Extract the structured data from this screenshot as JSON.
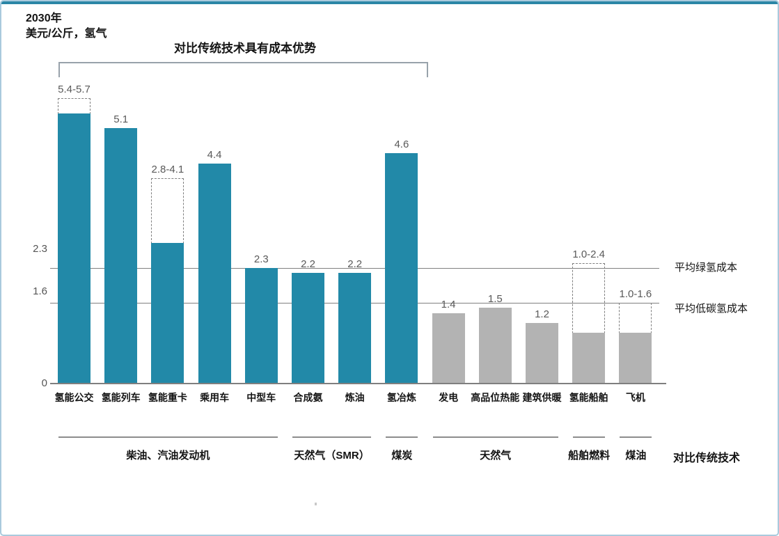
{
  "page": {
    "title": "2030年",
    "subtitle": "美元/公斤，氢气",
    "advantage_note": "对比传统技术具有成本优势",
    "comparison_label": "对比传统技术"
  },
  "colors": {
    "hydrogen_bar": "#2289a8",
    "conventional_bar": "#b3b3b3",
    "accent_strip": "#2b86a6",
    "page_border": "#a9cadd",
    "reference_line": "#7f7f7f"
  },
  "chart_data": {
    "type": "bar",
    "title": "2030年 美元/公斤，氢气",
    "ylabel": "美元/公斤，氢气",
    "ylim": [
      0,
      6
    ],
    "grid": false,
    "categories": [
      "氢能公交",
      "氢能列车",
      "氢能重卡",
      "乘用车",
      "中型车",
      "合成氨",
      "炼油",
      "氢冶炼",
      "发电",
      "高品位热能",
      "建筑供暖",
      "氢能船舶",
      "飞机"
    ],
    "bars": [
      {
        "category": "氢能公交",
        "value_low": 5.4,
        "value_high": 5.7,
        "label": "5.4-5.7",
        "style": "hydrogen"
      },
      {
        "category": "氢能列车",
        "value_low": 5.1,
        "value_high": null,
        "label": "5.1",
        "style": "hydrogen"
      },
      {
        "category": "氢能重卡",
        "value_low": 2.8,
        "value_high": 4.1,
        "label": "2.8-4.1",
        "style": "hydrogen"
      },
      {
        "category": "乘用车",
        "value_low": 4.4,
        "value_high": null,
        "label": "4.4",
        "style": "hydrogen"
      },
      {
        "category": "中型车",
        "value_low": 2.3,
        "value_high": null,
        "label": "2.3",
        "style": "hydrogen"
      },
      {
        "category": "合成氨",
        "value_low": 2.2,
        "value_high": null,
        "label": "2.2",
        "style": "hydrogen"
      },
      {
        "category": "炼油",
        "value_low": 2.2,
        "value_high": null,
        "label": "2.2",
        "style": "hydrogen"
      },
      {
        "category": "氢冶炼",
        "value_low": 4.6,
        "value_high": null,
        "label": "4.6",
        "style": "hydrogen"
      },
      {
        "category": "发电",
        "value_low": 1.4,
        "value_high": null,
        "label": "1.4",
        "style": "conventional"
      },
      {
        "category": "高品位热能",
        "value_low": 1.5,
        "value_high": null,
        "label": "1.5",
        "style": "conventional"
      },
      {
        "category": "建筑供暖",
        "value_low": 1.2,
        "value_high": null,
        "label": "1.2",
        "style": "conventional"
      },
      {
        "category": "氢能船舶",
        "value_low": 1.0,
        "value_high": 2.4,
        "label": "1.0-2.4",
        "style": "conventional"
      },
      {
        "category": "飞机",
        "value_low": 1.0,
        "value_high": 1.6,
        "label": "1.0-1.6",
        "style": "conventional"
      }
    ],
    "yticks": [
      {
        "label": "2.3",
        "value": 2.3
      },
      {
        "label": "1.6",
        "value": 1.6
      },
      {
        "label": "0",
        "value": 0
      }
    ],
    "reference_lines": [
      {
        "value": 2.3,
        "label": "平均绿氢成本"
      },
      {
        "value": 1.6,
        "label": "平均低碳氢成本"
      }
    ],
    "groups": [
      {
        "label": "柴油、汽油发动机",
        "start": 0,
        "end": 4
      },
      {
        "label": "天然气（SMR）",
        "start": 5,
        "end": 6
      },
      {
        "label": "煤炭",
        "start": 7,
        "end": 7
      },
      {
        "label": "天然气",
        "start": 8,
        "end": 10
      },
      {
        "label": "船舶燃料",
        "start": 11,
        "end": 11
      },
      {
        "label": "煤油",
        "start": 12,
        "end": 12
      }
    ],
    "cost_advantage_bracket": {
      "label": "对比传统技术具有成本优势",
      "start": 0,
      "end": 7
    },
    "legend_position": "none"
  }
}
